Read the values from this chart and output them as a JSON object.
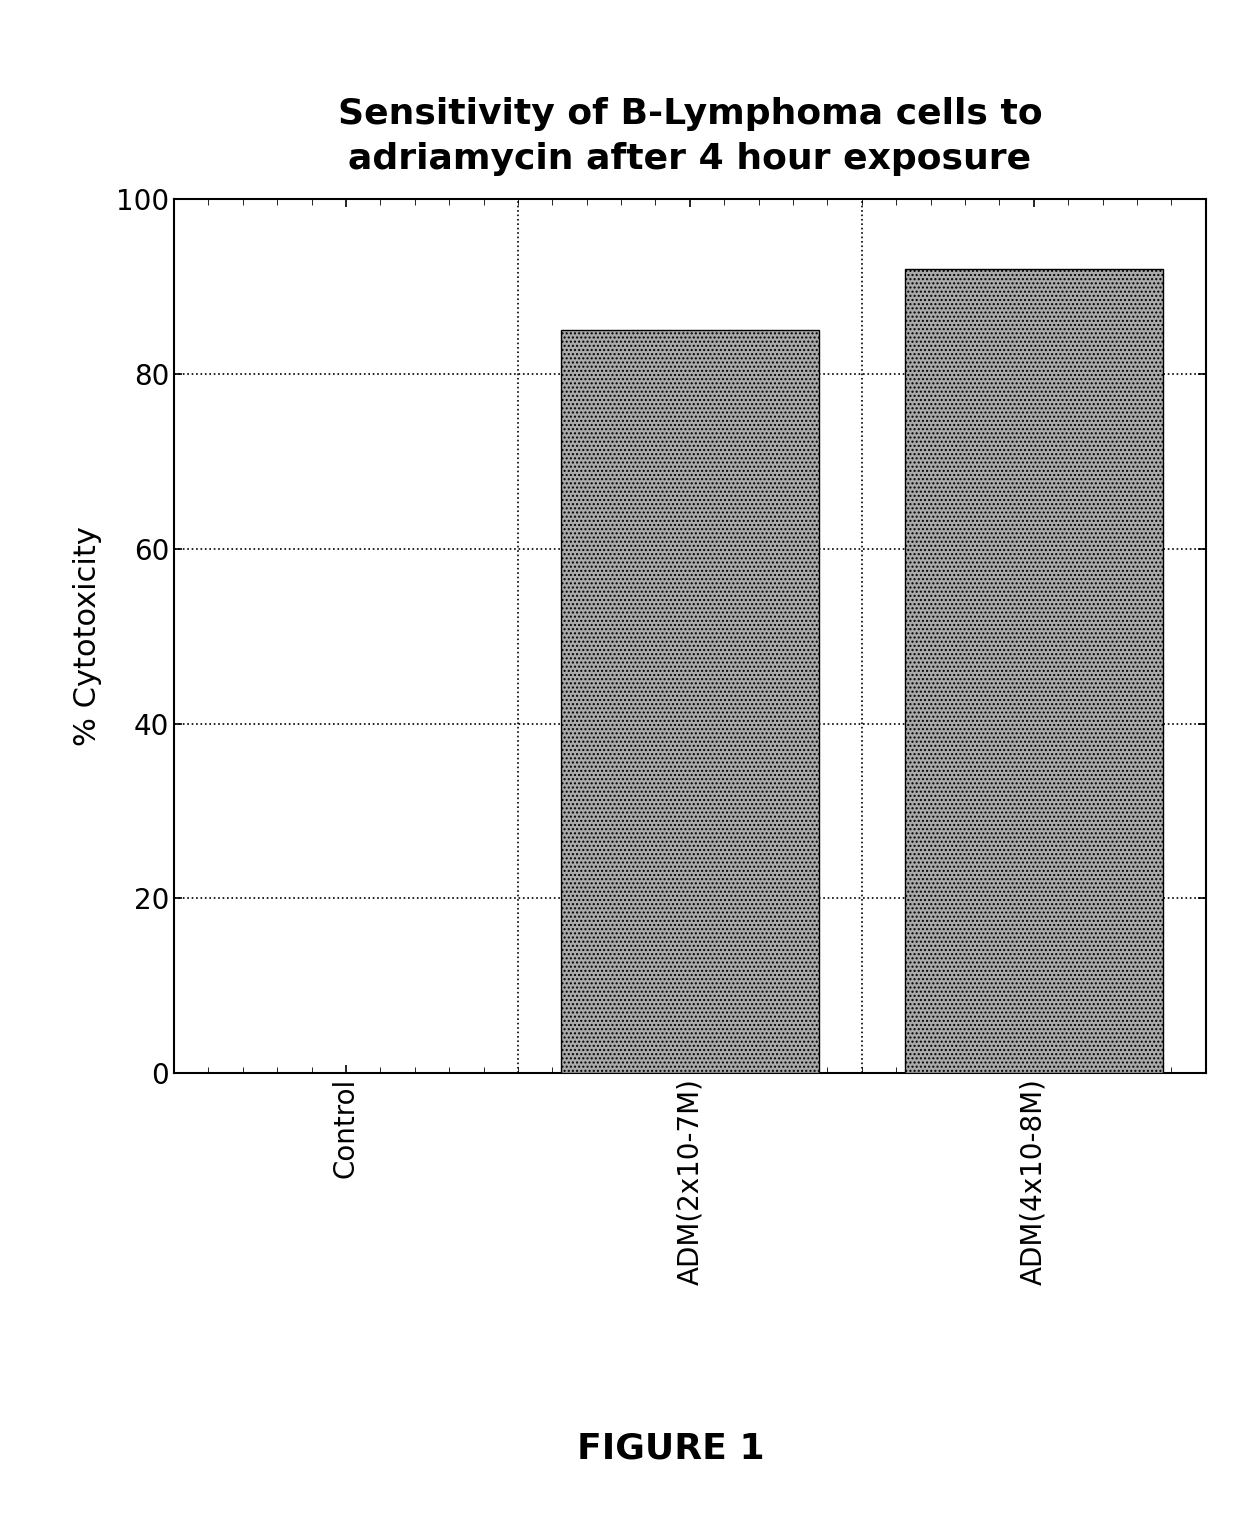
{
  "title_line1": "Sensitivity of B-Lymphoma cells to",
  "title_line2": "adriamycin after 4 hour exposure",
  "categories": [
    "Control",
    "ADM(2x10-7M)",
    "ADM(4x10-8M)"
  ],
  "values": [
    0,
    85,
    92
  ],
  "bar_color": "#aaaaaa",
  "ylabel": "% Cytotoxicity",
  "ylim": [
    0,
    100
  ],
  "yticks": [
    0,
    20,
    40,
    60,
    80,
    100
  ],
  "figure_label": "FIGURE 1",
  "background_color": "#ffffff",
  "title_fontsize": 26,
  "ylabel_fontsize": 22,
  "tick_fontsize": 20,
  "xticklabel_fontsize": 20,
  "figure_label_fontsize": 26
}
